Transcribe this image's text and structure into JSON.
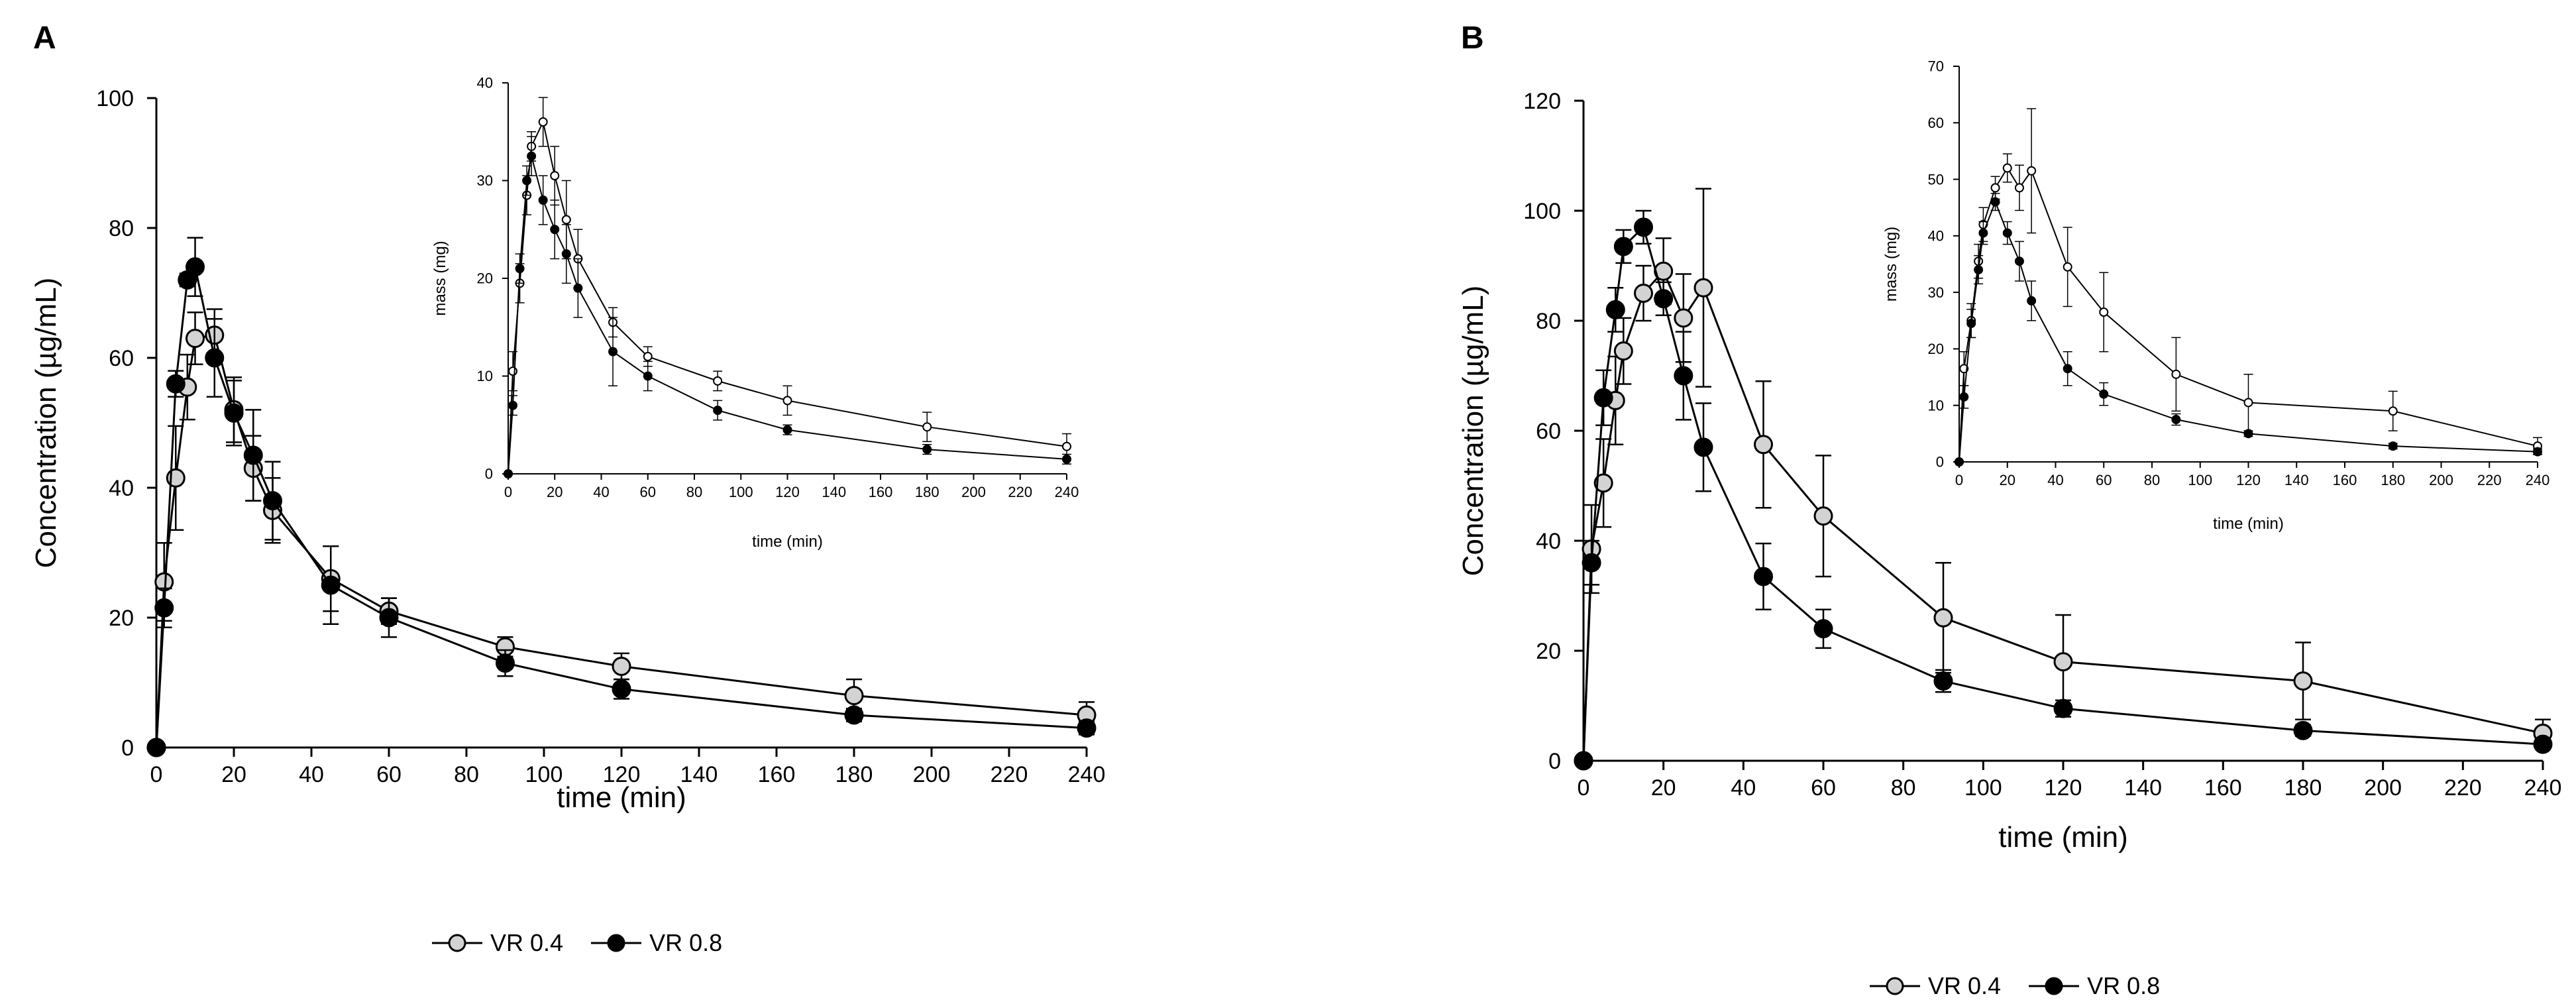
{
  "panels": [
    {
      "label": "A",
      "legend": {
        "open": "VR 0.4",
        "filled": "VR 0.8"
      },
      "chart_data": [
        {
          "type": "line",
          "title": "",
          "xlabel": "time (min)",
          "ylabel": "Concentration (µg/mL)",
          "xlim": [
            0,
            240
          ],
          "ylim": [
            0,
            100
          ],
          "xticks": [
            0,
            20,
            40,
            60,
            80,
            100,
            120,
            140,
            160,
            180,
            200,
            220,
            240
          ],
          "yticks": [
            0,
            20,
            40,
            60,
            80,
            100
          ],
          "series": [
            {
              "name": "VR 0.4",
              "marker": "open",
              "x": [
                0,
                2,
                5,
                8,
                10,
                15,
                20,
                25,
                30,
                45,
                60,
                90,
                120,
                180,
                240
              ],
              "y": [
                0,
                25.5,
                41.5,
                55.5,
                63,
                63.5,
                52,
                43,
                36.5,
                26,
                21,
                15.5,
                12.5,
                8,
                5
              ],
              "err": [
                0,
                6,
                8,
                5,
                4,
                4,
                5,
                5,
                5,
                5,
                2,
                1.5,
                2,
                2.5,
                2
              ]
            },
            {
              "name": "VR 0.8",
              "marker": "filled",
              "x": [
                0,
                2,
                5,
                8,
                10,
                15,
                20,
                25,
                30,
                45,
                60,
                90,
                120,
                180,
                240
              ],
              "y": [
                0,
                21.5,
                56,
                72,
                74,
                60,
                51.5,
                45,
                38,
                25,
                20,
                13,
                9,
                5,
                3
              ],
              "err": [
                0,
                3,
                2,
                1,
                4.5,
                6,
                5,
                7,
                6,
                6,
                3,
                2,
                1.5,
                1,
                1
              ]
            }
          ]
        },
        {
          "type": "line",
          "title": "",
          "inset": true,
          "xlabel": "time (min)",
          "ylabel": "mass (mg)",
          "xlim": [
            0,
            240
          ],
          "ylim": [
            0,
            40
          ],
          "xticks": [
            0,
            20,
            40,
            60,
            80,
            100,
            120,
            140,
            160,
            180,
            200,
            220,
            240
          ],
          "yticks": [
            0,
            10,
            20,
            30,
            40
          ],
          "series": [
            {
              "name": "VR 0.4",
              "marker": "open",
              "x": [
                0,
                2,
                5,
                8,
                10,
                15,
                20,
                25,
                30,
                45,
                60,
                90,
                120,
                180,
                240
              ],
              "y": [
                0,
                10.5,
                19.5,
                28.5,
                33.5,
                36,
                30.5,
                26,
                22,
                15.5,
                12,
                9.5,
                7.5,
                4.8,
                2.8
              ],
              "err": [
                0,
                2,
                2,
                2,
                1.5,
                2.5,
                3,
                4,
                3,
                1.5,
                1,
                1,
                1.5,
                1.5,
                1.3
              ]
            },
            {
              "name": "VR 0.8",
              "marker": "filled",
              "x": [
                0,
                2,
                5,
                8,
                10,
                15,
                20,
                25,
                30,
                45,
                60,
                90,
                120,
                180,
                240
              ],
              "y": [
                0,
                7,
                21,
                30,
                32.5,
                28,
                25,
                22.5,
                19,
                12.5,
                10,
                6.5,
                4.5,
                2.5,
                1.5
              ],
              "err": [
                0,
                1,
                1.5,
                1.5,
                2,
                2.5,
                3,
                3,
                3,
                3.5,
                1.5,
                1,
                0.5,
                0.5,
                0.5
              ]
            }
          ]
        }
      ]
    },
    {
      "label": "B",
      "legend": {
        "open": "VR 0.4",
        "filled": "VR 0.8"
      },
      "chart_data": [
        {
          "type": "line",
          "title": "",
          "xlabel": "time (min)",
          "ylabel": "Concentration (µg/mL)",
          "xlim": [
            0,
            240
          ],
          "ylim": [
            0,
            120
          ],
          "xticks": [
            0,
            20,
            40,
            60,
            80,
            100,
            120,
            140,
            160,
            180,
            200,
            220,
            240
          ],
          "yticks": [
            0,
            20,
            40,
            60,
            80,
            100,
            120
          ],
          "series": [
            {
              "name": "VR 0.4",
              "marker": "open",
              "x": [
                0,
                2,
                5,
                8,
                10,
                15,
                20,
                25,
                30,
                45,
                60,
                90,
                120,
                180,
                240
              ],
              "y": [
                0,
                38.5,
                50.5,
                65.5,
                74.5,
                85,
                89,
                80.5,
                86,
                57.5,
                44.5,
                26,
                18,
                14.5,
                5
              ],
              "err": [
                0,
                8,
                8,
                8,
                6,
                5,
                6,
                8,
                18,
                11.5,
                11,
                10,
                8.5,
                7,
                2.5
              ]
            },
            {
              "name": "VR 0.8",
              "marker": "filled",
              "x": [
                0,
                2,
                5,
                8,
                10,
                15,
                20,
                25,
                30,
                45,
                60,
                90,
                120,
                180,
                240
              ],
              "y": [
                0,
                36,
                66,
                82,
                93.5,
                97,
                84,
                70,
                57,
                33.5,
                24,
                14.5,
                9.5,
                5.5,
                3
              ],
              "err": [
                0,
                4,
                5,
                4,
                3,
                3,
                3,
                8,
                8,
                6,
                3.5,
                2,
                1.5,
                1,
                0.5
              ]
            }
          ]
        },
        {
          "type": "line",
          "title": "",
          "inset": true,
          "xlabel": "time (min)",
          "ylabel": "mass (mg)",
          "xlim": [
            0,
            240
          ],
          "ylim": [
            0,
            70
          ],
          "xticks": [
            0,
            20,
            40,
            60,
            80,
            100,
            120,
            140,
            160,
            180,
            200,
            220,
            240
          ],
          "yticks": [
            0,
            10,
            20,
            30,
            40,
            50,
            60,
            70
          ],
          "series": [
            {
              "name": "VR 0.4",
              "marker": "open",
              "x": [
                0,
                2,
                5,
                8,
                10,
                15,
                20,
                25,
                30,
                45,
                60,
                90,
                120,
                180,
                240
              ],
              "y": [
                0,
                16.5,
                25,
                35.5,
                42,
                48.5,
                52,
                48.5,
                51.5,
                34.5,
                26.5,
                15.5,
                10.5,
                9,
                2.8
              ],
              "err": [
                0,
                3,
                3,
                3,
                3,
                2,
                2.5,
                4,
                11,
                7,
                7,
                6.5,
                5,
                3.5,
                1.5
              ]
            },
            {
              "name": "VR 0.8",
              "marker": "filled",
              "x": [
                0,
                2,
                5,
                8,
                10,
                15,
                20,
                25,
                30,
                45,
                60,
                90,
                120,
                180,
                240
              ],
              "y": [
                0,
                11.5,
                24.5,
                34,
                40.5,
                46,
                40.5,
                35.5,
                28.5,
                16.5,
                12,
                7.5,
                5,
                2.8,
                1.8
              ],
              "err": [
                0,
                2,
                2.5,
                2.5,
                2,
                1.5,
                2,
                3.5,
                3.5,
                3,
                2,
                1,
                0.5,
                0.5,
                0.5
              ]
            }
          ]
        }
      ]
    }
  ]
}
